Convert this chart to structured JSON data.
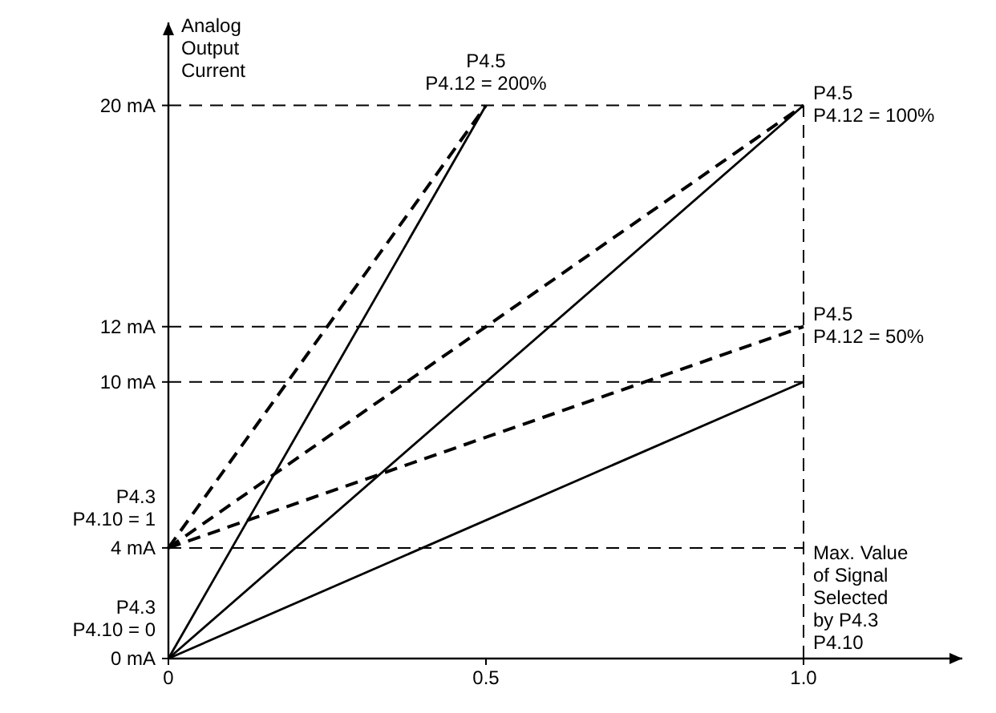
{
  "chart_data": {
    "type": "line",
    "ylabel": "Analog Output Current",
    "xlim": [
      0,
      1.25
    ],
    "ylim": [
      0,
      23
    ],
    "xticks": [
      0,
      0.5,
      {
        "value": 1,
        "label": "1.0"
      }
    ],
    "yticks": [
      {
        "value": 0,
        "label": "0 mA"
      },
      {
        "value": 4,
        "label": "4 mA"
      },
      {
        "value": 10,
        "label": "10 mA"
      },
      {
        "value": 12,
        "label": "12 mA"
      },
      {
        "value": 20,
        "label": "20 mA"
      }
    ],
    "series": [
      {
        "color": "#000000",
        "x": [
          0,
          0.5
        ],
        "values": [
          0,
          20
        ],
        "line_style": "solid"
      },
      {
        "color": "#000000",
        "x": [
          0,
          1
        ],
        "values": [
          0,
          20
        ],
        "line_style": "solid"
      },
      {
        "color": "#000000",
        "x": [
          0,
          1
        ],
        "values": [
          0,
          10
        ],
        "line_style": "solid"
      },
      {
        "color": "#000000",
        "x": [
          0,
          0.5
        ],
        "values": [
          4,
          20
        ],
        "line_style": "dashed"
      },
      {
        "color": "#000000",
        "x": [
          0,
          1
        ],
        "values": [
          4,
          20
        ],
        "line_style": "dashed"
      },
      {
        "color": "#000000",
        "x": [
          0,
          1
        ],
        "values": [
          4,
          12
        ],
        "line_style": "dashed"
      }
    ],
    "ref_lines": [
      {
        "axis": "y",
        "value": 20,
        "line_style": "dashed"
      },
      {
        "axis": "y",
        "value": 12,
        "line_style": "dashed"
      },
      {
        "axis": "y",
        "value": 10,
        "line_style": "dashed"
      },
      {
        "axis": "y",
        "value": 4,
        "line_style": "dashed"
      },
      {
        "axis": "x",
        "value": 1,
        "line_style": "dashed"
      }
    ],
    "annotations": [
      {
        "text": "P4.5\nP4.12 = 200%",
        "x": 0.5,
        "y": 20
      },
      {
        "text": "P4.5\nP4.12 = 100%",
        "x": 1,
        "y": 20
      },
      {
        "text": "P4.5\nP4.12 = 50%",
        "x": 1,
        "y": 12
      },
      {
        "text": "P4.3\nP4.10 = 1",
        "x": 0,
        "y": 4
      },
      {
        "text": "P4.3\nP4.10 = 0",
        "x": 0,
        "y": 0
      },
      "Max. Value\nof Signal\nSelected\nby P4.3\nP4.10"
    ]
  }
}
